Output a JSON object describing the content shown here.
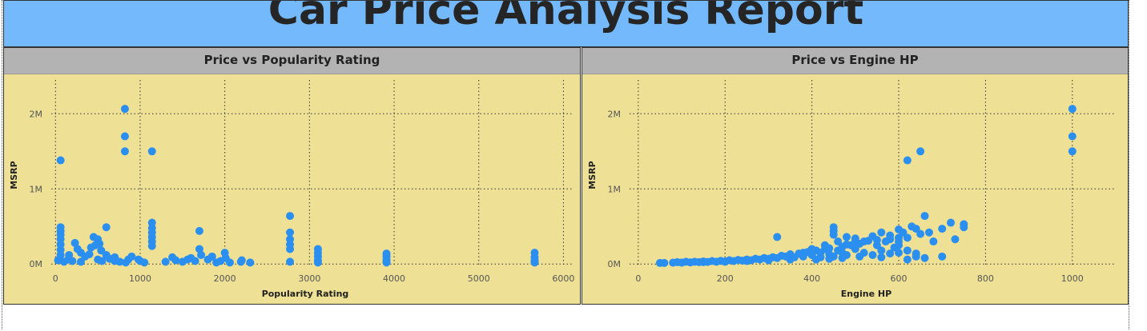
{
  "report_title": "Car Price Analysis Report",
  "colors": {
    "header": "#74b9fb",
    "panel_header": "#b3b3b3",
    "plot_bg": "#eee196",
    "points": "#2b8ff0"
  },
  "chart_data": [
    {
      "type": "scatter",
      "title": "Price vs Popularity Rating",
      "xlabel": "Popularity Rating",
      "ylabel": "MSRP",
      "xlim": [
        -50,
        6100
      ],
      "ylim": [
        -40000,
        2450000
      ],
      "xticks": [
        0,
        1000,
        2000,
        3000,
        4000,
        5000,
        6000
      ],
      "yticks": [
        0,
        1000000,
        2000000
      ],
      "ytick_labels": [
        "0M",
        "1M",
        "2M"
      ],
      "grid": true,
      "points": [
        [
          820,
          2065000
        ],
        [
          820,
          1700000
        ],
        [
          820,
          1500000
        ],
        [
          1140,
          1500000
        ],
        [
          60,
          1380000
        ],
        [
          2770,
          640000
        ],
        [
          2770,
          420000
        ],
        [
          2770,
          330000
        ],
        [
          2770,
          260000
        ],
        [
          2770,
          200000
        ],
        [
          1140,
          550000
        ],
        [
          1140,
          480000
        ],
        [
          1140,
          420000
        ],
        [
          1140,
          360000
        ],
        [
          1140,
          300000
        ],
        [
          1140,
          240000
        ],
        [
          60,
          490000
        ],
        [
          60,
          440000
        ],
        [
          60,
          390000
        ],
        [
          60,
          330000
        ],
        [
          60,
          260000
        ],
        [
          60,
          190000
        ],
        [
          60,
          120000
        ],
        [
          600,
          490000
        ],
        [
          1700,
          440000
        ],
        [
          450,
          360000
        ],
        [
          500,
          330000
        ],
        [
          520,
          270000
        ],
        [
          3100,
          200000
        ],
        [
          3100,
          150000
        ],
        [
          3100,
          100000
        ],
        [
          3100,
          50000
        ],
        [
          3910,
          140000
        ],
        [
          3910,
          100000
        ],
        [
          3910,
          60000
        ],
        [
          3910,
          30000
        ],
        [
          5660,
          150000
        ],
        [
          5660,
          90000
        ],
        [
          5660,
          50000
        ],
        [
          5660,
          30000
        ],
        [
          230,
          280000
        ],
        [
          260,
          200000
        ],
        [
          300,
          150000
        ],
        [
          350,
          100000
        ],
        [
          400,
          130000
        ],
        [
          420,
          220000
        ],
        [
          470,
          250000
        ],
        [
          540,
          180000
        ],
        [
          600,
          120000
        ],
        [
          640,
          70000
        ],
        [
          700,
          40000
        ],
        [
          860,
          60000
        ],
        [
          900,
          100000
        ],
        [
          980,
          60000
        ],
        [
          1000,
          40000
        ],
        [
          1380,
          90000
        ],
        [
          1420,
          50000
        ],
        [
          1600,
          80000
        ],
        [
          1650,
          40000
        ],
        [
          1700,
          200000
        ],
        [
          1720,
          120000
        ],
        [
          1800,
          60000
        ],
        [
          1850,
          100000
        ],
        [
          1950,
          40000
        ],
        [
          2000,
          150000
        ],
        [
          2010,
          80000
        ],
        [
          2200,
          50000
        ],
        [
          2190,
          30000
        ],
        [
          150,
          60000
        ],
        [
          200,
          40000
        ],
        [
          100,
          30000
        ],
        [
          30,
          50000
        ],
        [
          160,
          120000
        ],
        [
          300,
          30000
        ],
        [
          500,
          60000
        ],
        [
          550,
          40000
        ],
        [
          700,
          90000
        ],
        [
          760,
          30000
        ],
        [
          830,
          20000
        ],
        [
          1050,
          20000
        ],
        [
          1300,
          30000
        ],
        [
          1500,
          30000
        ],
        [
          1560,
          60000
        ],
        [
          1900,
          20000
        ],
        [
          2060,
          20000
        ],
        [
          2300,
          20000
        ],
        [
          2770,
          30000
        ],
        [
          3100,
          20000
        ],
        [
          3910,
          20000
        ],
        [
          5660,
          20000
        ]
      ]
    },
    {
      "type": "scatter",
      "title": "Price vs Engine HP",
      "xlabel": "Engine HP",
      "ylabel": "MSRP",
      "xlim": [
        -20,
        1100
      ],
      "ylim": [
        -40000,
        2450000
      ],
      "xticks": [
        0,
        200,
        400,
        600,
        800,
        1000
      ],
      "yticks": [
        0,
        1000000,
        2000000
      ],
      "ytick_labels": [
        "0M",
        "1M",
        "2M"
      ],
      "grid": true,
      "points": [
        [
          1000,
          2065000
        ],
        [
          1000,
          1700000
        ],
        [
          1000,
          1500000
        ],
        [
          650,
          1500000
        ],
        [
          620,
          1380000
        ],
        [
          660,
          640000
        ],
        [
          720,
          550000
        ],
        [
          750,
          530000
        ],
        [
          750,
          490000
        ],
        [
          700,
          470000
        ],
        [
          630,
          500000
        ],
        [
          640,
          470000
        ],
        [
          600,
          460000
        ],
        [
          610,
          420000
        ],
        [
          560,
          420000
        ],
        [
          540,
          370000
        ],
        [
          500,
          340000
        ],
        [
          480,
          360000
        ],
        [
          450,
          490000
        ],
        [
          450,
          440000
        ],
        [
          450,
          390000
        ],
        [
          320,
          360000
        ],
        [
          700,
          100000
        ],
        [
          730,
          330000
        ],
        [
          670,
          420000
        ],
        [
          640,
          140000
        ],
        [
          660,
          80000
        ],
        [
          620,
          60000
        ],
        [
          590,
          220000
        ],
        [
          550,
          250000
        ],
        [
          520,
          300000
        ],
        [
          500,
          200000
        ],
        [
          480,
          260000
        ],
        [
          460,
          180000
        ],
        [
          440,
          210000
        ],
        [
          420,
          150000
        ],
        [
          400,
          120000
        ],
        [
          380,
          150000
        ],
        [
          360,
          90000
        ],
        [
          340,
          100000
        ],
        [
          320,
          80000
        ],
        [
          300,
          70000
        ],
        [
          280,
          60000
        ],
        [
          260,
          50000
        ],
        [
          240,
          45000
        ],
        [
          220,
          40000
        ],
        [
          200,
          35000
        ],
        [
          180,
          30000
        ],
        [
          160,
          28000
        ],
        [
          140,
          25000
        ],
        [
          120,
          22000
        ],
        [
          100,
          20000
        ],
        [
          80,
          18000
        ],
        [
          60,
          15000
        ],
        [
          50,
          14000
        ],
        [
          90,
          25000
        ],
        [
          110,
          30000
        ],
        [
          130,
          30000
        ],
        [
          150,
          35000
        ],
        [
          170,
          40000
        ],
        [
          190,
          42000
        ],
        [
          210,
          50000
        ],
        [
          230,
          55000
        ],
        [
          250,
          60000
        ],
        [
          270,
          70000
        ],
        [
          290,
          80000
        ],
        [
          310,
          90000
        ],
        [
          330,
          110000
        ],
        [
          350,
          130000
        ],
        [
          370,
          140000
        ],
        [
          390,
          160000
        ],
        [
          410,
          180000
        ],
        [
          430,
          200000
        ],
        [
          470,
          230000
        ],
        [
          490,
          250000
        ],
        [
          510,
          270000
        ],
        [
          530,
          310000
        ],
        [
          550,
          320000
        ],
        [
          570,
          300000
        ],
        [
          580,
          330000
        ],
        [
          600,
          350000
        ],
        [
          400,
          200000
        ],
        [
          430,
          250000
        ],
        [
          460,
          300000
        ],
        [
          500,
          300000
        ],
        [
          420,
          90000
        ],
        [
          450,
          100000
        ],
        [
          480,
          120000
        ],
        [
          520,
          150000
        ],
        [
          560,
          180000
        ],
        [
          600,
          250000
        ],
        [
          410,
          60000
        ],
        [
          440,
          70000
        ],
        [
          470,
          80000
        ],
        [
          510,
          100000
        ],
        [
          540,
          120000
        ],
        [
          580,
          140000
        ],
        [
          600,
          150000
        ],
        [
          620,
          180000
        ],
        [
          560,
          90000
        ],
        [
          470,
          150000
        ],
        [
          440,
          130000
        ],
        [
          380,
          100000
        ],
        [
          350,
          60000
        ],
        [
          300,
          50000
        ],
        [
          250,
          40000
        ],
        [
          200,
          30000
        ],
        [
          150,
          25000
        ],
        [
          100,
          18000
        ],
        [
          640,
          100000
        ],
        [
          680,
          300000
        ],
        [
          600,
          300000
        ],
        [
          620,
          350000
        ],
        [
          650,
          400000
        ],
        [
          580,
          380000
        ]
      ]
    }
  ]
}
